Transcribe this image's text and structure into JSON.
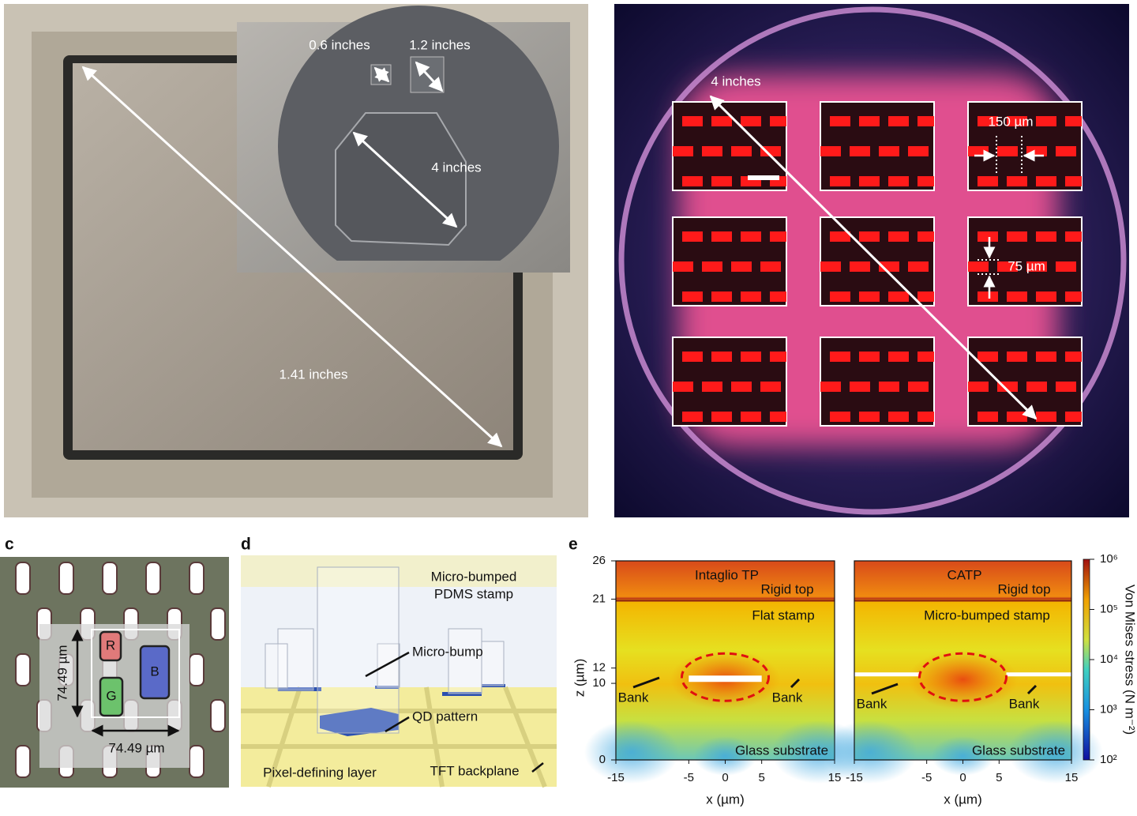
{
  "panel_a": {
    "inset_labels": [
      "0.6 inches",
      "1.2 inches",
      "4 inches"
    ],
    "diagonal_label": "1.41 inches"
  },
  "panel_b": {
    "diagonal_label": "4 inches",
    "pitch_label": "150 µm",
    "height_label": "75 µm"
  },
  "panel_c": {
    "label": "c",
    "subpixels": [
      "R",
      "G",
      "B"
    ],
    "height_label": "74.49 µm",
    "width_label": "74.49 µm"
  },
  "panel_d": {
    "label": "d",
    "stamp_label": [
      "Micro-bumped",
      "PDMS stamp"
    ],
    "bump_label": "Micro-bump",
    "qd_label": "QD pattern",
    "pdl_label": "Pixel-defining layer",
    "tft_label": "TFT backplane"
  },
  "panel_e": {
    "label": "e",
    "plots": [
      {
        "title": "Intaglio TP",
        "top_label": "Rigid top",
        "stamp_label": "Flat stamp",
        "banks": [
          "Bank",
          "Bank"
        ],
        "substrate_label": "Glass substrate"
      },
      {
        "title": "CATP",
        "top_label": "Rigid top",
        "stamp_label": "Micro-bumped stamp",
        "banks": [
          "Bank",
          "Bank"
        ],
        "substrate_label": "Glass substrate"
      }
    ],
    "xlabel": "x (µm)",
    "ylabel": "z (µm)",
    "xlim": [
      -15,
      15
    ],
    "xticks": [
      -15,
      -5,
      0,
      5,
      15
    ],
    "ylim": [
      0,
      26
    ],
    "yticks": [
      0,
      10,
      12,
      21,
      26
    ],
    "colorbar": {
      "label": "Von Mises stress (N m⁻²)",
      "scale": "log",
      "lim": [
        100,
        1000000
      ],
      "ticks": [
        {
          "value": 100,
          "label": "10²"
        },
        {
          "value": 1000,
          "label": "10³"
        },
        {
          "value": 10000,
          "label": "10⁴"
        },
        {
          "value": 100000,
          "label": "10⁵"
        },
        {
          "value": 1000000,
          "label": "10⁶"
        }
      ]
    }
  }
}
